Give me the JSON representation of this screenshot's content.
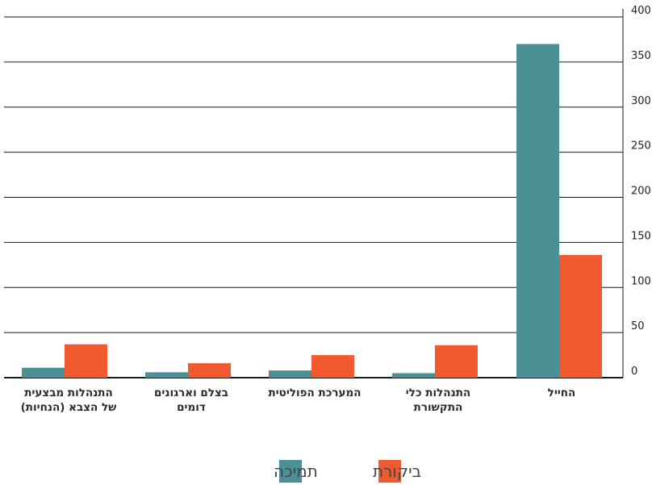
{
  "chart_data": {
    "type": "bar",
    "categories": [
      [
        "התנהלות מבצעית",
        "של הצבא (הנחיות)"
      ],
      [
        "בצלם וארגונים",
        "דומים"
      ],
      [
        "המערכת הפוליטית"
      ],
      [
        "התנהלות כלי",
        "התקשורת"
      ],
      [
        "החייל"
      ]
    ],
    "series": [
      {
        "name": "תמיכה",
        "color": "#4a9094",
        "values": [
          11,
          6,
          8,
          5,
          370
        ]
      },
      {
        "name": "ביקורת",
        "color": "#f15a2e",
        "values": [
          37,
          16,
          25,
          36,
          136
        ]
      }
    ],
    "ylim": [
      0,
      400
    ],
    "yticks": [
      0,
      50,
      100,
      150,
      200,
      250,
      300,
      350,
      400
    ],
    "grid": true,
    "legend_position": "bottom-center"
  }
}
